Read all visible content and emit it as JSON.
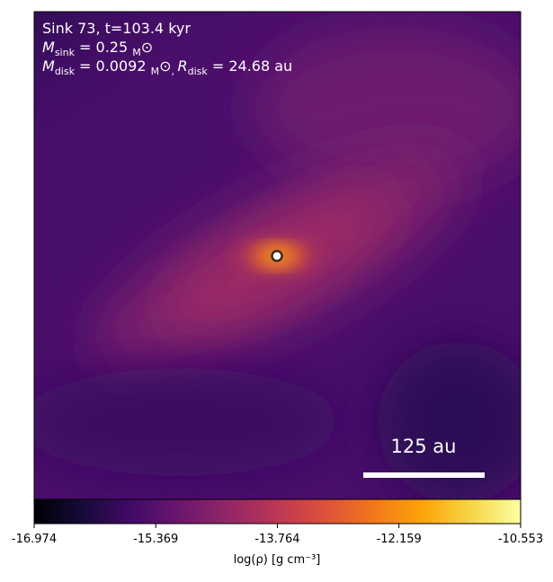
{
  "chart_data": {
    "type": "density-map",
    "annotations": [
      [
        "Sink 73, t=103.4 kyr"
      ],
      [
        "M",
        "sink",
        " = 0.25 ",
        "M",
        "⊙"
      ],
      [
        "M",
        "disk",
        " = 0.0092 ",
        "M",
        "⊙",
        ", ",
        "R",
        "disk",
        " = 24.68 au"
      ]
    ],
    "scale_bar_label": "125 au",
    "colorbar_label": "log(ρ) [g cm⁻³]",
    "clim": [
      -16.974,
      -10.553
    ],
    "cticks": [
      -16.974,
      -15.369,
      -13.764,
      -12.159,
      -10.553
    ],
    "colormap": [
      "#000004",
      "#160b39",
      "#420a68",
      "#6a176e",
      "#932667",
      "#bc3754",
      "#dd513a",
      "#f37819",
      "#fca50a",
      "#f6d746",
      "#fcffa4"
    ]
  }
}
